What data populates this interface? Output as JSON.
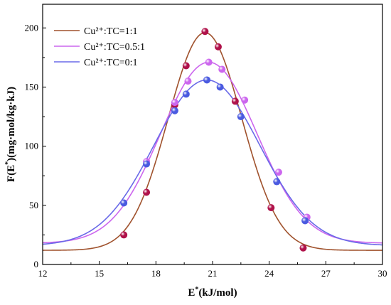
{
  "chart_data": {
    "type": "line",
    "title": "",
    "xlabel": "E*(kJ/mol)",
    "ylabel": "F(E*)(mg·mol/kg·kJ)",
    "xlim": [
      12,
      30
    ],
    "ylim": [
      0,
      220
    ],
    "xticks": [
      12,
      15,
      18,
      21,
      24,
      27,
      30
    ],
    "yticks": [
      0,
      50,
      100,
      150,
      200
    ],
    "legend_position": "top-left",
    "grid": false,
    "series": [
      {
        "name": "Cu²⁺:TC=1:1",
        "line_color": "#a0522d",
        "marker_color": "#b0124a",
        "fit": {
          "baseline": 12,
          "amplitude": 184,
          "center": 20.6,
          "sigma": 1.95
        },
        "points": [
          {
            "x": 16.3,
            "y": 25
          },
          {
            "x": 17.5,
            "y": 61
          },
          {
            "x": 19.0,
            "y": 135
          },
          {
            "x": 19.6,
            "y": 168
          },
          {
            "x": 20.6,
            "y": 197
          },
          {
            "x": 21.3,
            "y": 184
          },
          {
            "x": 22.2,
            "y": 138
          },
          {
            "x": 24.1,
            "y": 48
          },
          {
            "x": 25.8,
            "y": 14
          }
        ]
      },
      {
        "name": "Cu²⁺:TC=0.5:1",
        "line_color": "#cc66ee",
        "marker_color": "#cc66ee",
        "fit": {
          "baseline": 18,
          "amplitude": 153,
          "center": 20.8,
          "sigma": 2.55
        },
        "points": [
          {
            "x": 17.5,
            "y": 87
          },
          {
            "x": 19.0,
            "y": 137
          },
          {
            "x": 19.7,
            "y": 155
          },
          {
            "x": 20.8,
            "y": 171
          },
          {
            "x": 21.5,
            "y": 165
          },
          {
            "x": 22.7,
            "y": 139
          },
          {
            "x": 24.5,
            "y": 78
          },
          {
            "x": 26.0,
            "y": 40
          }
        ]
      },
      {
        "name": "Cu²⁺:TC=0:1",
        "line_color": "#6a6ae8",
        "marker_color": "#4a5ae0",
        "fit": {
          "baseline": 16,
          "amplitude": 140,
          "center": 20.7,
          "sigma": 2.8
        },
        "points": [
          {
            "x": 16.3,
            "y": 52
          },
          {
            "x": 17.5,
            "y": 85
          },
          {
            "x": 19.0,
            "y": 130
          },
          {
            "x": 19.6,
            "y": 144
          },
          {
            "x": 20.7,
            "y": 156
          },
          {
            "x": 21.4,
            "y": 150
          },
          {
            "x": 22.5,
            "y": 125
          },
          {
            "x": 24.4,
            "y": 70
          },
          {
            "x": 25.9,
            "y": 37
          }
        ]
      }
    ]
  }
}
